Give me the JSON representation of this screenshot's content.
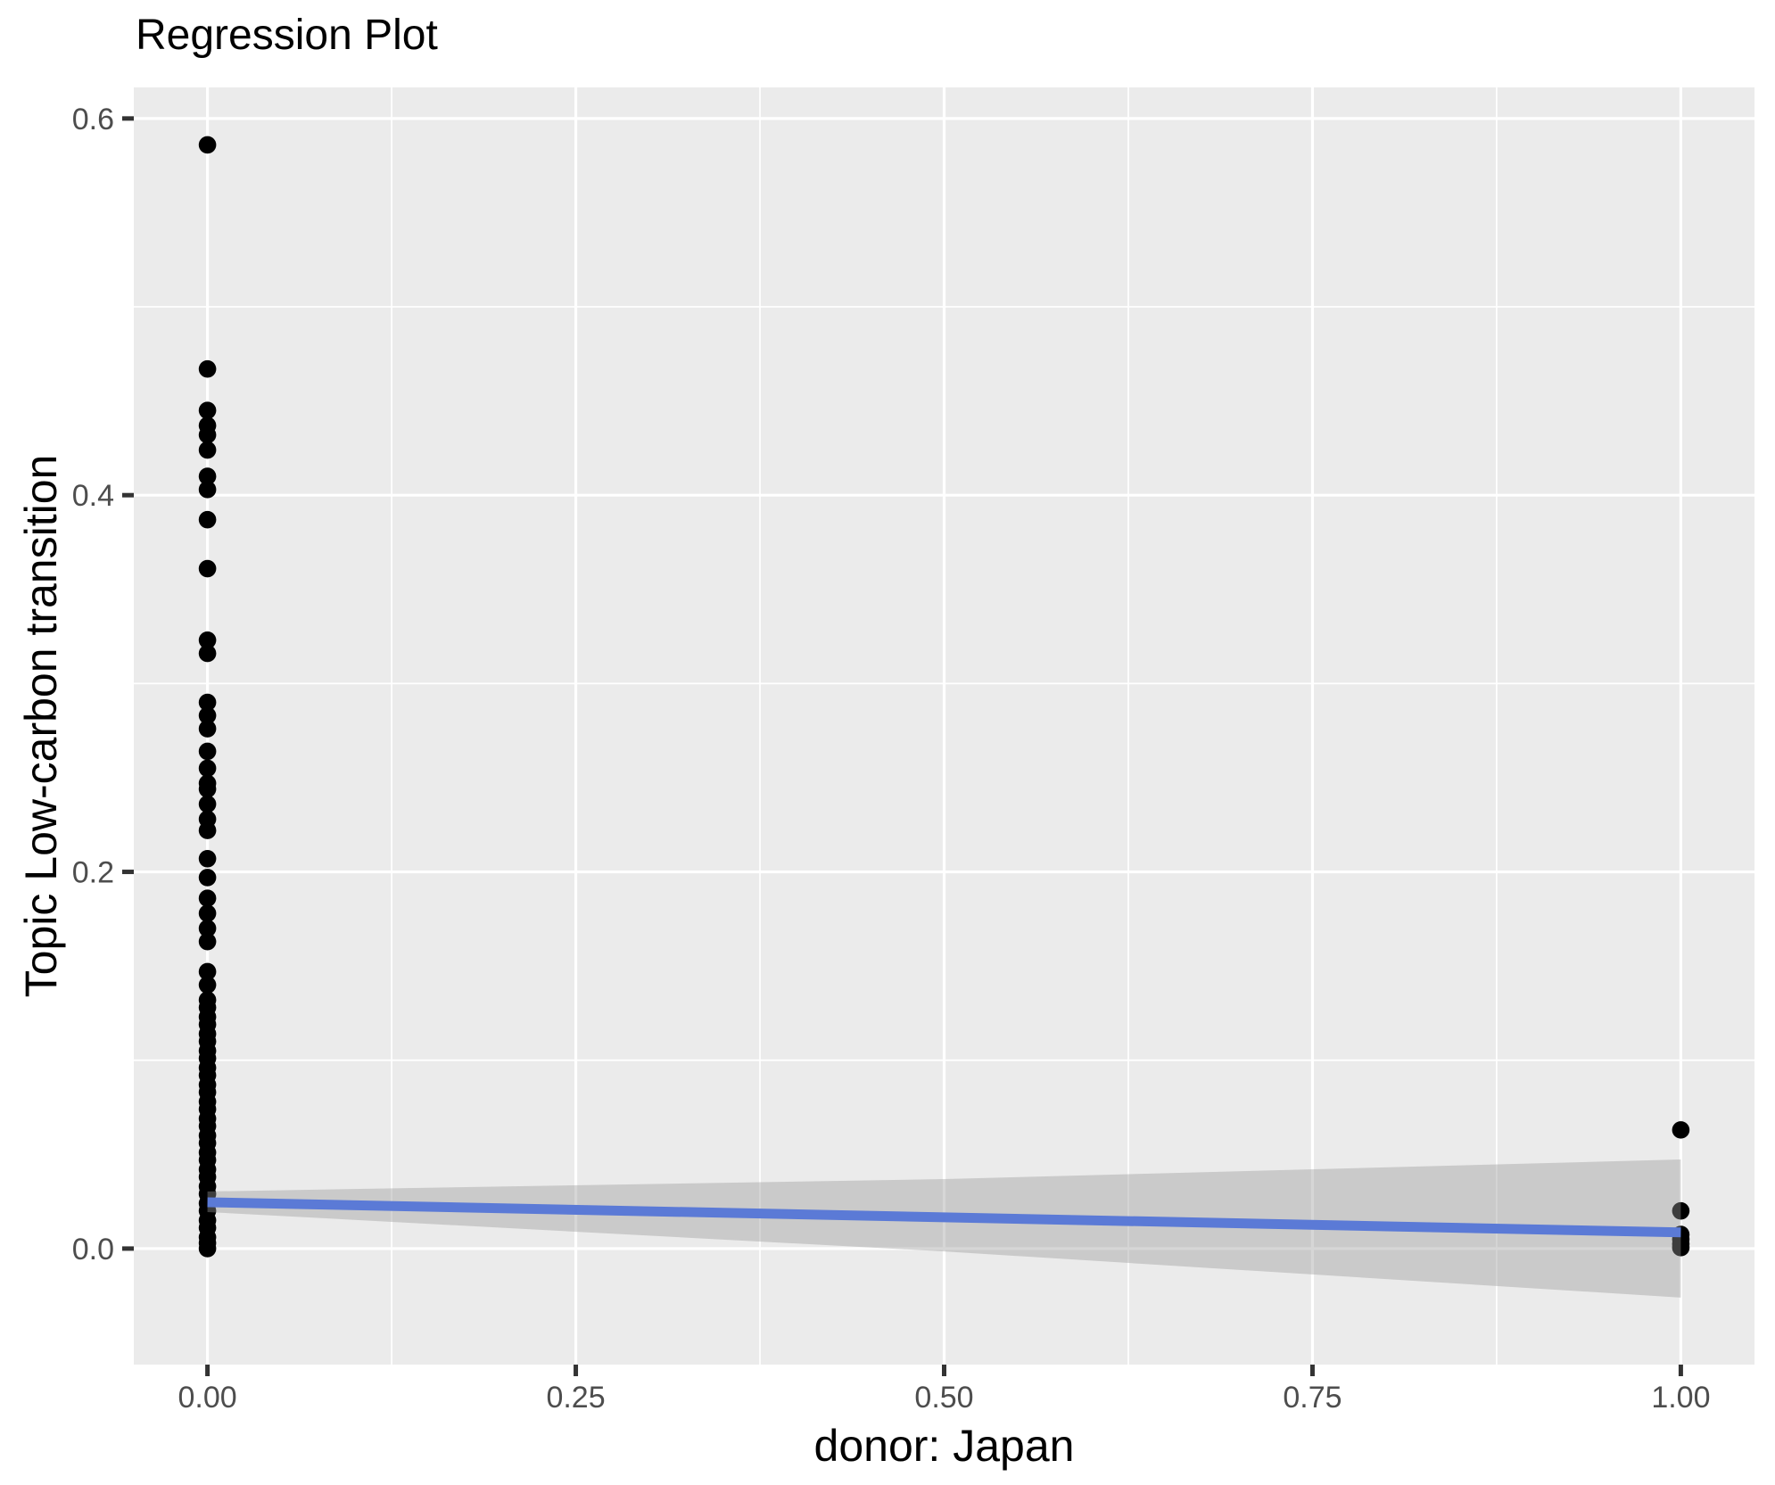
{
  "page": {
    "background": "#ffffff"
  },
  "chart_data": {
    "type": "scatter",
    "title": "Regression Plot",
    "xlabel": "donor: Japan",
    "ylabel": "Topic Low-carbon transition",
    "xlim": [
      -0.05,
      1.05
    ],
    "ylim": [
      -0.0616,
      0.6165
    ],
    "grid": true,
    "legend": "none",
    "x_ticks": {
      "values": [
        0,
        0.25,
        0.5,
        0.75,
        1
      ],
      "labels": [
        "0.00",
        "0.25",
        "0.50",
        "0.75",
        "1.00"
      ]
    },
    "x_minor_ticks": [
      0.125,
      0.375,
      0.625,
      0.875
    ],
    "y_ticks": {
      "values": [
        0,
        0.2,
        0.4,
        0.6
      ],
      "labels": [
        "0.0",
        "0.2",
        "0.4",
        "0.6"
      ]
    },
    "y_minor_ticks": [
      0.1,
      0.3,
      0.5
    ],
    "colors": {
      "panel_background": "#EBEBEB",
      "gridline": "#FFFFFF",
      "point": "#000000",
      "smooth_line": "#3366FF",
      "ci_fill": "#999999",
      "tick_label": "#4D4D4D",
      "tick_mark": "#333333",
      "axis_title": "#000000",
      "plot_title": "#000000"
    },
    "ci_opacity": 0.4,
    "series": [
      {
        "name": "observations",
        "type": "points",
        "color": "#000000",
        "points": [
          [
            0,
            0.586
          ],
          [
            0,
            0.467
          ],
          [
            0,
            0.445
          ],
          [
            0,
            0.437
          ],
          [
            0,
            0.432
          ],
          [
            0,
            0.424
          ],
          [
            0,
            0.41
          ],
          [
            0,
            0.403
          ],
          [
            0,
            0.387
          ],
          [
            0,
            0.361
          ],
          [
            0,
            0.323
          ],
          [
            0,
            0.316
          ],
          [
            0,
            0.29
          ],
          [
            0,
            0.283
          ],
          [
            0,
            0.276
          ],
          [
            0,
            0.264
          ],
          [
            0,
            0.255
          ],
          [
            0,
            0.247
          ],
          [
            0,
            0.244
          ],
          [
            0,
            0.236
          ],
          [
            0,
            0.228
          ],
          [
            0,
            0.222
          ],
          [
            0,
            0.207
          ],
          [
            0,
            0.197
          ],
          [
            0,
            0.186
          ],
          [
            0,
            0.178
          ],
          [
            0,
            0.17
          ],
          [
            0,
            0.163
          ],
          [
            0,
            0.147
          ],
          [
            0,
            0.14
          ],
          [
            0,
            0.132
          ],
          [
            0,
            0.128
          ],
          [
            0,
            0.123
          ],
          [
            0,
            0.119
          ],
          [
            0,
            0.114
          ],
          [
            0,
            0.11
          ],
          [
            0,
            0.105
          ],
          [
            0,
            0.101
          ],
          [
            0,
            0.096
          ],
          [
            0,
            0.092
          ],
          [
            0,
            0.087
          ],
          [
            0,
            0.083
          ],
          [
            0,
            0.078
          ],
          [
            0,
            0.074
          ],
          [
            0,
            0.069
          ],
          [
            0,
            0.065
          ],
          [
            0,
            0.06
          ],
          [
            0,
            0.056
          ],
          [
            0,
            0.051
          ],
          [
            0,
            0.047
          ],
          [
            0,
            0.042
          ],
          [
            0,
            0.038
          ],
          [
            0,
            0.033
          ],
          [
            0,
            0.029
          ],
          [
            0,
            0.024
          ],
          [
            0,
            0.02
          ],
          [
            0,
            0.015
          ],
          [
            0,
            0.011
          ],
          [
            0,
            0.006
          ],
          [
            0,
            0.003
          ],
          [
            0,
            0.0
          ],
          [
            1,
            0.063
          ],
          [
            1,
            0.02
          ],
          [
            1,
            0.0075
          ],
          [
            1,
            0.005
          ],
          [
            1,
            0.0025
          ],
          [
            1,
            0.0005
          ]
        ]
      },
      {
        "name": "regression-line",
        "type": "line",
        "color": "#3366FF",
        "x": [
          0,
          1
        ],
        "y": [
          0.0246,
          0.0086
        ]
      },
      {
        "name": "confidence-band",
        "type": "band",
        "color": "#999999",
        "opacity": 0.4,
        "x": [
          0,
          0.5,
          1
        ],
        "upper": [
          0.0303,
          0.0369,
          0.0473
        ],
        "lower": [
          0.0194,
          -0.0015,
          -0.026
        ]
      }
    ]
  }
}
